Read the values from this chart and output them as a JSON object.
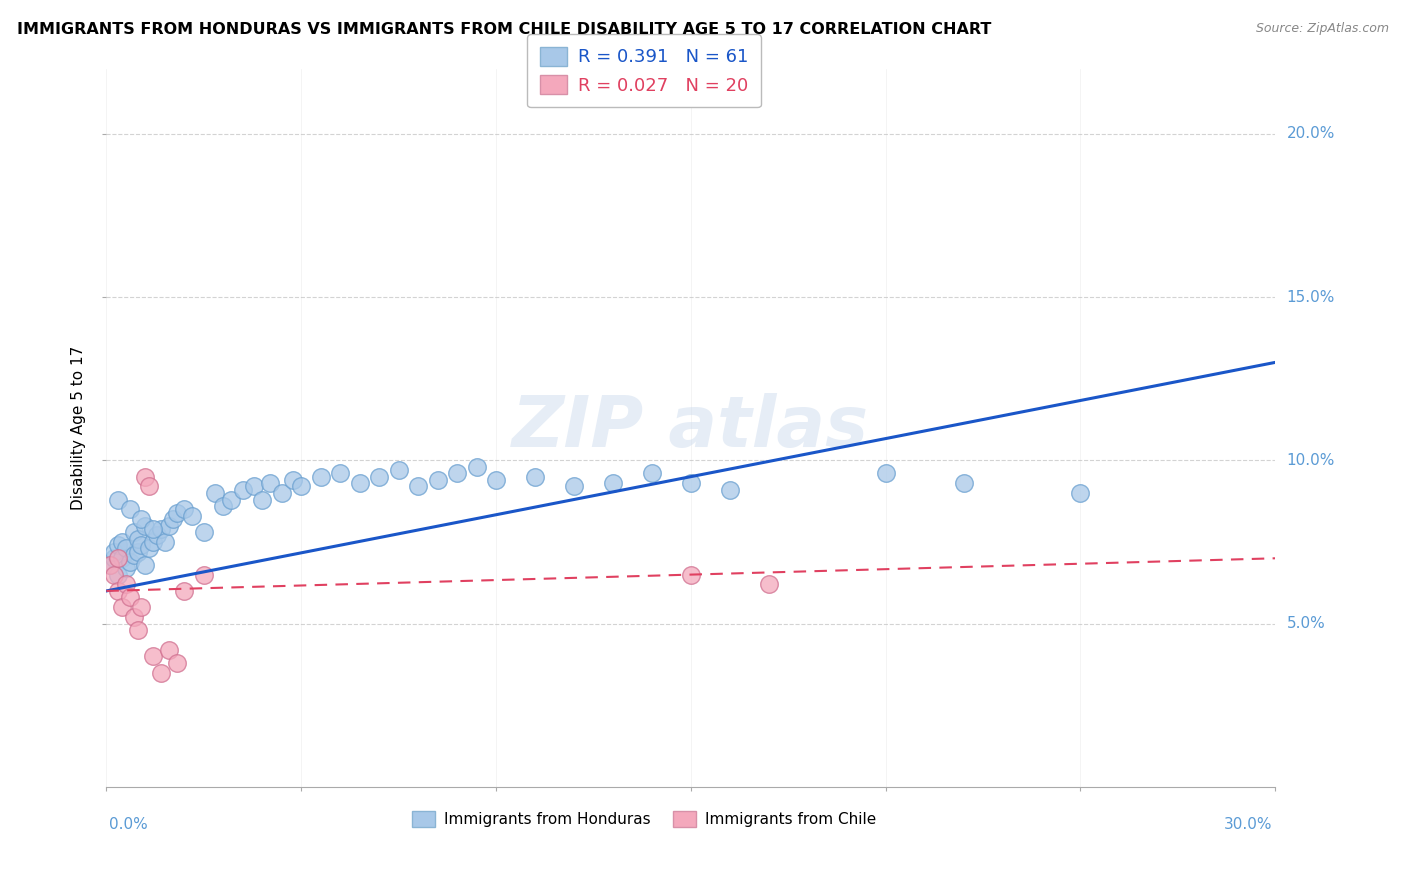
{
  "title": "IMMIGRANTS FROM HONDURAS VS IMMIGRANTS FROM CHILE DISABILITY AGE 5 TO 17 CORRELATION CHART",
  "source": "Source: ZipAtlas.com",
  "ylabel": "Disability Age 5 to 17",
  "legend1_label": "R = 0.391   N = 61",
  "legend2_label": "R = 0.027   N = 20",
  "legend_xlabel": "Immigrants from Honduras",
  "legend_ylabel": "Immigrants from Chile",
  "honduras_color": "#a8c8e8",
  "chile_color": "#f4a8bc",
  "honduras_line_color": "#1a56c8",
  "chile_line_color": "#e04060",
  "honduras_x": [
    0.001,
    0.002,
    0.002,
    0.003,
    0.003,
    0.004,
    0.004,
    0.005,
    0.005,
    0.006,
    0.007,
    0.007,
    0.008,
    0.008,
    0.009,
    0.01,
    0.01,
    0.011,
    0.012,
    0.013,
    0.014,
    0.015,
    0.016,
    0.017,
    0.018,
    0.02,
    0.022,
    0.025,
    0.028,
    0.03,
    0.032,
    0.035,
    0.038,
    0.04,
    0.042,
    0.045,
    0.048,
    0.05,
    0.055,
    0.06,
    0.065,
    0.07,
    0.075,
    0.08,
    0.085,
    0.09,
    0.095,
    0.1,
    0.11,
    0.12,
    0.13,
    0.14,
    0.15,
    0.16,
    0.003,
    0.006,
    0.009,
    0.012,
    0.2,
    0.22,
    0.25
  ],
  "honduras_y": [
    0.068,
    0.07,
    0.072,
    0.065,
    0.074,
    0.07,
    0.075,
    0.067,
    0.073,
    0.069,
    0.071,
    0.078,
    0.072,
    0.076,
    0.074,
    0.068,
    0.08,
    0.073,
    0.075,
    0.077,
    0.079,
    0.075,
    0.08,
    0.082,
    0.084,
    0.085,
    0.083,
    0.078,
    0.09,
    0.086,
    0.088,
    0.091,
    0.092,
    0.088,
    0.093,
    0.09,
    0.094,
    0.092,
    0.095,
    0.096,
    0.093,
    0.095,
    0.097,
    0.092,
    0.094,
    0.096,
    0.098,
    0.094,
    0.095,
    0.092,
    0.093,
    0.096,
    0.093,
    0.091,
    0.088,
    0.085,
    0.082,
    0.079,
    0.096,
    0.093,
    0.09
  ],
  "chile_x": [
    0.001,
    0.002,
    0.003,
    0.003,
    0.004,
    0.005,
    0.006,
    0.007,
    0.008,
    0.009,
    0.01,
    0.011,
    0.012,
    0.014,
    0.016,
    0.018,
    0.02,
    0.025,
    0.15,
    0.17
  ],
  "chile_y": [
    0.068,
    0.065,
    0.06,
    0.07,
    0.055,
    0.062,
    0.058,
    0.052,
    0.048,
    0.055,
    0.095,
    0.092,
    0.04,
    0.035,
    0.042,
    0.038,
    0.06,
    0.065,
    0.065,
    0.062
  ],
  "xmin": 0.0,
  "xmax": 0.3,
  "ymin": 0.0,
  "ymax": 0.22,
  "ytick_vals": [
    0.05,
    0.1,
    0.15,
    0.2
  ],
  "xtick_vals": [
    0.0,
    0.05,
    0.1,
    0.15,
    0.2,
    0.25,
    0.3
  ],
  "honduras_line_x": [
    0.0,
    0.3
  ],
  "honduras_line_y": [
    0.06,
    0.13
  ],
  "chile_line_x": [
    0.0,
    0.3
  ],
  "chile_line_y": [
    0.06,
    0.07
  ]
}
